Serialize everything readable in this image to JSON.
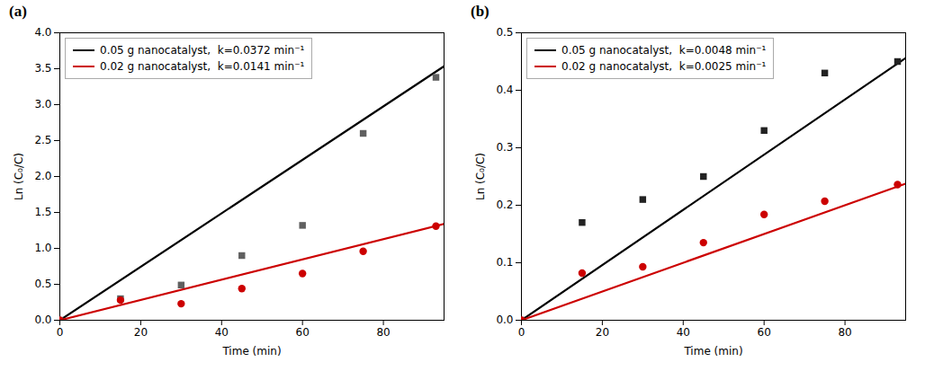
{
  "chart_data": [
    {
      "type": "line",
      "title": "(a)",
      "xlabel": "Time (min)",
      "ylabel": "Ln (C₀/C)",
      "xlim": [
        0,
        95
      ],
      "xticks": [
        0,
        20,
        40,
        60,
        80
      ],
      "ylim": [
        0,
        4.0
      ],
      "yticks": [
        {
          "value": 0.0,
          "label": "0.0"
        },
        0.5,
        {
          "value": 1.0,
          "label": "1.0"
        },
        1.5,
        {
          "value": 2.0,
          "label": "2.0"
        },
        2.5,
        {
          "value": 3.0,
          "label": "3.0"
        },
        3.5,
        {
          "value": 4.0,
          "label": "4.0"
        }
      ],
      "legend": "upper left",
      "series": [
        {
          "name": "0.05 g nanocatalyst,  k=0.0372 min⁻¹",
          "type": "line",
          "color": "#000000",
          "x": [
            0,
            95
          ],
          "values": [
            0.0,
            3.534
          ]
        },
        {
          "name": "0.02 g nanocatalyst,  k=0.0141 min⁻¹",
          "type": "line",
          "color": "#cc0000",
          "x": [
            0,
            95
          ],
          "values": [
            0.0,
            1.3395
          ]
        },
        {
          "type": "scatter",
          "color": "#606060",
          "marker": "square",
          "x": [
            0,
            15,
            30,
            45,
            60,
            75,
            93
          ],
          "values": [
            0.0,
            0.3,
            0.49,
            0.9,
            1.32,
            2.6,
            3.38
          ]
        },
        {
          "type": "scatter",
          "color": "#cc0000",
          "marker": "circle",
          "x": [
            0,
            15,
            30,
            45,
            60,
            75,
            93
          ],
          "values": [
            0.0,
            0.28,
            0.23,
            0.44,
            0.65,
            0.96,
            1.31
          ]
        }
      ]
    },
    {
      "type": "line",
      "title": "(b)",
      "xlabel": "Time (min)",
      "ylabel": "Ln (C₀/C)",
      "xlim": [
        0,
        95
      ],
      "xticks": [
        0,
        20,
        40,
        60,
        80
      ],
      "ylim": [
        0,
        0.5
      ],
      "yticks": [
        {
          "value": 0.0,
          "label": "0.0"
        },
        0.1,
        0.2,
        0.3,
        0.4,
        0.5
      ],
      "legend": "upper left",
      "series": [
        {
          "name": "0.05 g nanocatalyst,  k=0.0048 min⁻¹",
          "type": "line",
          "color": "#000000",
          "x": [
            0,
            95
          ],
          "values": [
            0.0,
            0.456
          ]
        },
        {
          "name": "0.02 g nanocatalyst,  k=0.0025 min⁻¹",
          "type": "line",
          "color": "#cc0000",
          "x": [
            0,
            95
          ],
          "values": [
            0.0,
            0.2375
          ]
        },
        {
          "type": "scatter",
          "color": "#222222",
          "marker": "square",
          "x": [
            0,
            15,
            30,
            45,
            60,
            75,
            93
          ],
          "values": [
            0.0,
            0.17,
            0.21,
            0.25,
            0.33,
            0.43,
            0.45
          ]
        },
        {
          "type": "scatter",
          "color": "#cc0000",
          "marker": "circle",
          "x": [
            0,
            15,
            30,
            45,
            60,
            75,
            93
          ],
          "values": [
            0.0,
            0.082,
            0.093,
            0.135,
            0.184,
            0.207,
            0.236
          ]
        }
      ]
    }
  ]
}
